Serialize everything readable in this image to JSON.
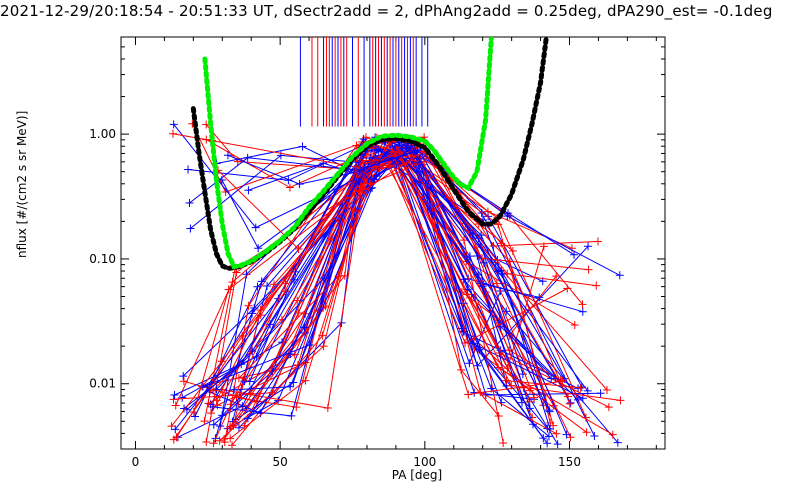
{
  "chart_data": {
    "type": "scatter",
    "title": "2021-12-29/20:18:54 - 20:51:33 UT, dSectr2add = 2, dPhAng2add = 0.25deg, dPA290_est=  -0.1deg",
    "xlabel": "PA [deg]",
    "ylabel": "nflux [#/(cm2 s sr MeV)]",
    "xlim": [
      -5,
      183
    ],
    "ylim": [
      0.003,
      6.0
    ],
    "yscale": "log",
    "x_ticks": [
      0,
      50,
      100,
      150
    ],
    "x_tick_labels": [
      "0",
      "50",
      "100",
      "150"
    ],
    "y_ticks": [
      0.01,
      0.1,
      1.0
    ],
    "y_tick_labels": [
      "0.01",
      "0.10",
      "1.00"
    ],
    "grid": false,
    "colors": {
      "red": "#ff0000",
      "blue": "#0000ff",
      "green": "#00ee00",
      "black": "#000000"
    },
    "series": [
      {
        "color": "#00ee00",
        "style": "thick-dotted",
        "x": [
          24,
          26,
          28,
          30,
          32,
          34,
          36,
          40,
          45,
          50,
          55,
          60,
          65,
          70,
          75,
          80,
          85,
          90,
          95,
          100,
          103,
          106,
          109,
          112,
          115,
          118,
          121,
          123
        ],
        "y": [
          4.0,
          1.2,
          0.42,
          0.19,
          0.11,
          0.087,
          0.088,
          0.096,
          0.115,
          0.14,
          0.18,
          0.26,
          0.35,
          0.48,
          0.66,
          0.84,
          0.96,
          0.98,
          0.95,
          0.88,
          0.75,
          0.6,
          0.48,
          0.4,
          0.37,
          0.5,
          1.3,
          6.0
        ]
      },
      {
        "color": "#000000",
        "style": "thick-dotted",
        "x": [
          20,
          22,
          24,
          26,
          28,
          30,
          32,
          34,
          36,
          40,
          45,
          50,
          55,
          60,
          65,
          70,
          75,
          80,
          85,
          90,
          95,
          100,
          105,
          110,
          115,
          120,
          123,
          126,
          130,
          134,
          137,
          140,
          142
        ],
        "y": [
          1.6,
          0.7,
          0.34,
          0.17,
          0.11,
          0.088,
          0.084,
          0.085,
          0.087,
          0.095,
          0.112,
          0.138,
          0.175,
          0.24,
          0.33,
          0.46,
          0.63,
          0.8,
          0.9,
          0.92,
          0.88,
          0.78,
          0.55,
          0.36,
          0.24,
          0.19,
          0.19,
          0.22,
          0.33,
          0.62,
          1.2,
          2.6,
          6.0
        ]
      }
    ],
    "pa_markers": {
      "red_x": [
        61,
        63,
        66,
        67,
        69,
        71,
        73,
        77,
        82,
        84,
        86,
        88,
        90,
        92,
        94,
        96
      ],
      "blue_x": [
        57,
        65,
        68,
        70,
        72,
        75,
        79,
        81,
        83,
        85,
        87,
        89,
        91,
        93,
        95,
        97,
        99,
        101
      ]
    }
  }
}
